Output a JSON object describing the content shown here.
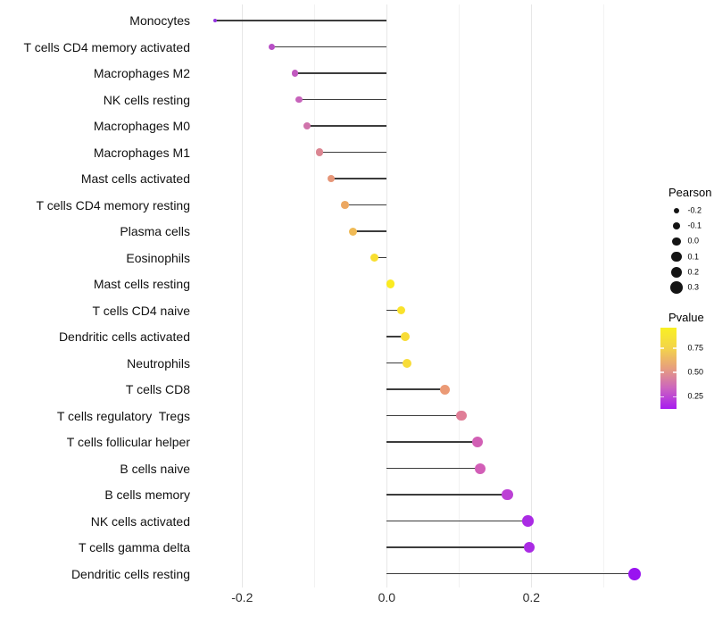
{
  "chart_data": {
    "type": "scatter",
    "subtype": "lollipop",
    "title": "",
    "xlabel": "",
    "ylabel": "",
    "grid": true,
    "x_axis": {
      "range": [
        -0.266,
        0.372
      ],
      "tick_labels": [
        {
          "value": -0.2,
          "label": "-0.2"
        },
        {
          "value": 0.0,
          "label": "0.0"
        },
        {
          "value": 0.2,
          "label": "0.2"
        }
      ],
      "major_gridlines": [
        -0.2,
        0.0,
        0.2
      ],
      "minor_gridlines": [
        -0.1,
        0.1,
        0.3
      ]
    },
    "rows": [
      {
        "label": "Monocytes",
        "pearson": -0.237,
        "dot_radius": 2.0,
        "color": "#9331E0"
      },
      {
        "label": "T cells CD4 memory activated",
        "pearson": -0.159,
        "dot_radius": 3.7,
        "color": "#B84FC6"
      },
      {
        "label": "Macrophages M2",
        "pearson": -0.127,
        "dot_radius": 3.8,
        "color": "#C159BF"
      },
      {
        "label": "NK cells resting",
        "pearson": -0.121,
        "dot_radius": 3.9,
        "color": "#C763BB"
      },
      {
        "label": "Macrophages M0",
        "pearson": -0.11,
        "dot_radius": 4.0,
        "color": "#D073AB"
      },
      {
        "label": "Macrophages M1",
        "pearson": -0.093,
        "dot_radius": 4.1,
        "color": "#DB8692"
      },
      {
        "label": "Mast cells activated",
        "pearson": -0.077,
        "dot_radius": 4.3,
        "color": "#E69678"
      },
      {
        "label": "T cells CD4 memory resting",
        "pearson": -0.058,
        "dot_radius": 4.4,
        "color": "#ECA862"
      },
      {
        "label": "Plasma cells",
        "pearson": -0.047,
        "dot_radius": 4.5,
        "color": "#F0BA55"
      },
      {
        "label": "Eosinophils",
        "pearson": -0.017,
        "dot_radius": 4.6,
        "color": "#F8DE2F"
      },
      {
        "label": "Mast cells resting",
        "pearson": 0.005,
        "dot_radius": 4.8,
        "color": "#FBEB21"
      },
      {
        "label": "T cells CD4 naive",
        "pearson": 0.02,
        "dot_radius": 4.9,
        "color": "#F9E22C"
      },
      {
        "label": "Dendritic cells activated",
        "pearson": 0.025,
        "dot_radius": 5.0,
        "color": "#F8DC36"
      },
      {
        "label": "Neutrophils",
        "pearson": 0.028,
        "dot_radius": 5.0,
        "color": "#F8DC38"
      },
      {
        "label": "T cells CD8",
        "pearson": 0.081,
        "dot_radius": 5.5,
        "color": "#EB9A76"
      },
      {
        "label": "T cells regulatory  Tregs",
        "pearson": 0.103,
        "dot_radius": 5.8,
        "color": "#E07E97"
      },
      {
        "label": "T cells follicular helper",
        "pearson": 0.125,
        "dot_radius": 6.0,
        "color": "#D260B5"
      },
      {
        "label": "B cells naive",
        "pearson": 0.129,
        "dot_radius": 6.0,
        "color": "#D25EB7"
      },
      {
        "label": "B cells memory",
        "pearson": 0.167,
        "dot_radius": 6.2,
        "color": "#BC41D5"
      },
      {
        "label": "NK cells activated",
        "pearson": 0.195,
        "dot_radius": 6.3,
        "color": "#AA2BE4"
      },
      {
        "label": "T cells gamma delta",
        "pearson": 0.197,
        "dot_radius": 6.3,
        "color": "#AA2BE4"
      },
      {
        "label": "Dendritic cells resting",
        "pearson": 0.343,
        "dot_radius": 7.0,
        "color": "#9913F0"
      }
    ],
    "legend_pearson": {
      "title": "Pearson",
      "entries": [
        {
          "label": "-0.2",
          "radius": 3.0
        },
        {
          "label": "-0.1",
          "radius": 4.1
        },
        {
          "label": "0.0",
          "radius": 4.9
        },
        {
          "label": "0.1",
          "radius": 5.6
        },
        {
          "label": "0.2",
          "radius": 6.2
        },
        {
          "label": "0.3",
          "radius": 6.9
        }
      ]
    },
    "legend_pvalue": {
      "title": "Pvalue",
      "labels": [
        {
          "text": "0.75",
          "pct": 25
        },
        {
          "text": "0.50",
          "pct": 55
        },
        {
          "text": "0.25",
          "pct": 85
        }
      ],
      "gradient_top_to_bottom": [
        "#F9F023",
        "#F3D44A",
        "#E79E7E",
        "#CB63C0",
        "#A81CF0"
      ]
    },
    "legend_position": "right"
  },
  "colors": {
    "stem": "#3C3C3C",
    "grid_major": "#E7E7E7",
    "grid_minor": "#F2F2F2",
    "axis_text": "#2E2E2E",
    "legend_dot": "#141414",
    "background": "#FFFFFF"
  }
}
